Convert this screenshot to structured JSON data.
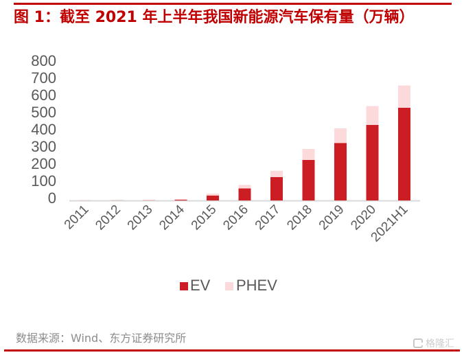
{
  "header": {
    "title": "图 1：截至 2021 年上半年我国新能源汽车保有量（万辆）"
  },
  "footer": {
    "source": "数据来源：Wind、东方证券研究所",
    "watermark": "格隆汇"
  },
  "colors": {
    "accent": "#c00000",
    "ev": "#cd1d24",
    "phev": "#fcdadc",
    "axis": "#d9d9d9",
    "text": "#595959"
  },
  "chart_data": {
    "type": "bar",
    "stacked": true,
    "title": "图 1：截至 2021 年上半年我国新能源汽车保有量（万辆）",
    "xlabel": "",
    "ylabel": "",
    "categories": [
      "2011",
      "2012",
      "2013",
      "2014",
      "2015",
      "2016",
      "2017",
      "2018",
      "2019",
      "2020",
      "2021H1"
    ],
    "series": [
      {
        "name": "EV",
        "color": "#cd1d24",
        "values": [
          0.3,
          0.7,
          1.5,
          4,
          29,
          70,
          136,
          236,
          335,
          440,
          540
        ]
      },
      {
        "name": "PHEV",
        "color": "#fcdadc",
        "values": [
          0.2,
          0.3,
          0.5,
          4,
          11,
          21,
          37,
          64,
          85,
          110,
          130
        ]
      }
    ],
    "ylim": [
      0,
      800
    ],
    "yticks": [
      "0",
      "100",
      "200",
      "300",
      "400",
      "500",
      "600",
      "700",
      "800"
    ],
    "ytick_values": [
      0,
      100,
      200,
      300,
      400,
      500,
      600,
      700,
      800
    ],
    "xtick_rotation": -45,
    "grid": false,
    "legend": {
      "position": "bottom",
      "entries": [
        "EV",
        "PHEV"
      ]
    }
  }
}
